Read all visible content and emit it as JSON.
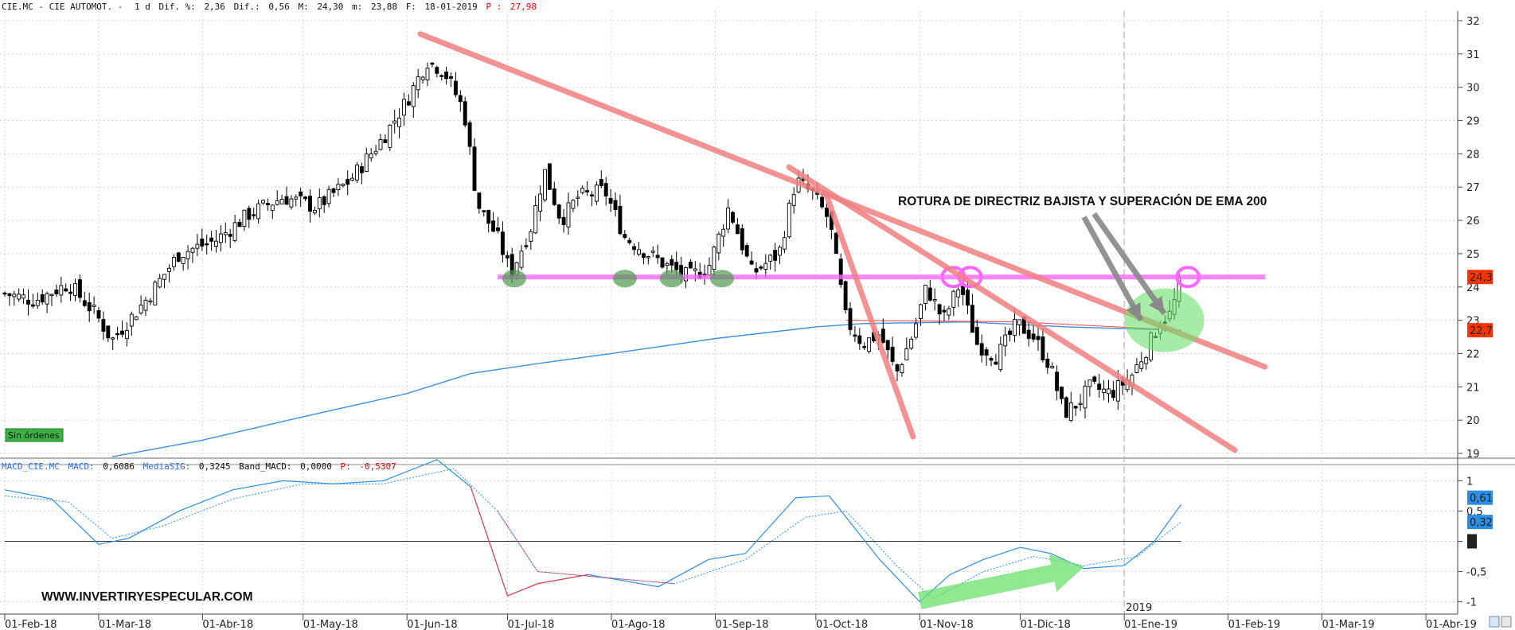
{
  "header": {
    "symbol": "CIE.MC - CIE AUTOMOT. -",
    "period": "1 d",
    "dif_pct_label": "Dif. %:",
    "dif_pct": "2,36",
    "dif_label": "Dif.:",
    "dif": "0,56",
    "max_label": "M:",
    "max": "24,30",
    "min_label": "m:",
    "min": "23,88",
    "date_label": "F:",
    "date": "18-01-2019",
    "p_label": "P :",
    "p": "27,98"
  },
  "macd_header": {
    "symbol": "MACD_CIE.MC",
    "macd_label": "MACD:",
    "macd": "0,6086",
    "signal_label": "MediaSIG:",
    "signal": "0,3245",
    "band_label": "Band_MACD:",
    "band": "0,0000",
    "p_label": "P:",
    "p": "-0,5307"
  },
  "status_badge": "Sin órdenes",
  "watermark": "WWW.INVERTIRYESPECULAR.COM",
  "annotation": "ROTURA DE DIRECTRIZ BAJISTA Y SUPERACIÓN DE EMA 200",
  "year_label": "2019",
  "colors": {
    "trendline": "#f08080",
    "support": "#ff66ff",
    "ema200": "#3d8fe0",
    "ema_short": "#ff4444",
    "macd": "#2a8ee8",
    "signal": "#ff3030",
    "highlight_green": "#6be06b",
    "price_tag": "#ff3300",
    "macd_tag": "#2a8ee8"
  },
  "chart_data": [
    {
      "type": "candlestick",
      "ylim": [
        19,
        32
      ],
      "y_ticks": [
        "19",
        "20",
        "21",
        "22",
        "23",
        "24",
        "25",
        "26",
        "27",
        "28",
        "29",
        "30",
        "31",
        "32"
      ],
      "x_ticks": [
        "01-Feb-18",
        "01-Mar-18",
        "01-Abr-18",
        "01-May-18",
        "01-Jun-18",
        "01-Jul-18",
        "01-Ago-18",
        "01-Sep-18",
        "01-Oct-18",
        "01-Nov-18",
        "01-Dic-18",
        "01-Ene-19",
        "01-Feb-19",
        "01-Mar-19",
        "01-Abr-19"
      ],
      "last_price_tag": "24,3",
      "ema_tag": "22,7",
      "support_level": 24.3,
      "close_path": [
        {
          "d": "2018-02-01",
          "v": 23.8
        },
        {
          "d": "2018-02-10",
          "v": 23.6
        },
        {
          "d": "2018-02-20",
          "v": 24.1
        },
        {
          "d": "2018-02-28",
          "v": 23.2
        },
        {
          "d": "2018-03-05",
          "v": 22.4
        },
        {
          "d": "2018-03-15",
          "v": 23.6
        },
        {
          "d": "2018-03-25",
          "v": 25.0
        },
        {
          "d": "2018-04-05",
          "v": 25.4
        },
        {
          "d": "2018-04-15",
          "v": 26.2
        },
        {
          "d": "2018-04-25",
          "v": 26.7
        },
        {
          "d": "2018-05-05",
          "v": 26.4
        },
        {
          "d": "2018-05-15",
          "v": 27.2
        },
        {
          "d": "2018-05-25",
          "v": 28.5
        },
        {
          "d": "2018-06-01",
          "v": 29.6
        },
        {
          "d": "2018-06-07",
          "v": 30.8
        },
        {
          "d": "2018-06-12",
          "v": 30.5
        },
        {
          "d": "2018-06-18",
          "v": 29.3
        },
        {
          "d": "2018-06-22",
          "v": 26.5
        },
        {
          "d": "2018-06-28",
          "v": 25.5
        },
        {
          "d": "2018-07-02",
          "v": 24.4
        },
        {
          "d": "2018-07-08",
          "v": 25.8
        },
        {
          "d": "2018-07-12",
          "v": 27.5
        },
        {
          "d": "2018-07-17",
          "v": 26.0
        },
        {
          "d": "2018-07-22",
          "v": 26.7
        },
        {
          "d": "2018-07-30",
          "v": 26.9
        },
        {
          "d": "2018-08-05",
          "v": 25.5
        },
        {
          "d": "2018-08-12",
          "v": 25.0
        },
        {
          "d": "2018-08-18",
          "v": 24.6
        },
        {
          "d": "2018-08-24",
          "v": 24.3
        },
        {
          "d": "2018-08-30",
          "v": 24.6
        },
        {
          "d": "2018-09-05",
          "v": 26.4
        },
        {
          "d": "2018-09-12",
          "v": 24.4
        },
        {
          "d": "2018-09-20",
          "v": 25.0
        },
        {
          "d": "2018-09-25",
          "v": 27.2
        },
        {
          "d": "2018-09-30",
          "v": 26.8
        },
        {
          "d": "2018-10-05",
          "v": 26.0
        },
        {
          "d": "2018-10-10",
          "v": 23.0
        },
        {
          "d": "2018-10-15",
          "v": 22.3
        },
        {
          "d": "2018-10-20",
          "v": 22.6
        },
        {
          "d": "2018-10-25",
          "v": 21.4
        },
        {
          "d": "2018-10-30",
          "v": 22.6
        },
        {
          "d": "2018-11-03",
          "v": 24.0
        },
        {
          "d": "2018-11-08",
          "v": 23.0
        },
        {
          "d": "2018-11-13",
          "v": 24.1
        },
        {
          "d": "2018-11-18",
          "v": 22.3
        },
        {
          "d": "2018-11-24",
          "v": 21.9
        },
        {
          "d": "2018-11-30",
          "v": 22.9
        },
        {
          "d": "2018-12-05",
          "v": 22.5
        },
        {
          "d": "2018-12-10",
          "v": 21.6
        },
        {
          "d": "2018-12-14",
          "v": 20.2
        },
        {
          "d": "2018-12-18",
          "v": 20.5
        },
        {
          "d": "2018-12-22",
          "v": 21.0
        },
        {
          "d": "2018-12-28",
          "v": 20.8
        },
        {
          "d": "2019-01-03",
          "v": 21.3
        },
        {
          "d": "2019-01-08",
          "v": 22.2
        },
        {
          "d": "2019-01-12",
          "v": 23.0
        },
        {
          "d": "2019-01-15",
          "v": 23.2
        },
        {
          "d": "2019-01-18",
          "v": 24.3
        }
      ],
      "ema200": [
        {
          "d": "2018-03-05",
          "v": 18.9
        },
        {
          "d": "2018-04-01",
          "v": 19.4
        },
        {
          "d": "2018-05-01",
          "v": 20.1
        },
        {
          "d": "2018-06-01",
          "v": 20.8
        },
        {
          "d": "2018-06-20",
          "v": 21.4
        },
        {
          "d": "2018-07-10",
          "v": 21.7
        },
        {
          "d": "2018-08-01",
          "v": 22.0
        },
        {
          "d": "2018-09-01",
          "v": 22.45
        },
        {
          "d": "2018-10-01",
          "v": 22.8
        },
        {
          "d": "2018-10-15",
          "v": 22.9
        },
        {
          "d": "2018-11-15",
          "v": 22.95
        },
        {
          "d": "2018-12-15",
          "v": 22.8
        },
        {
          "d": "2019-01-18",
          "v": 22.7
        }
      ],
      "trendlines": [
        {
          "from": {
            "d": "2018-06-05",
            "v": 31.6
          },
          "to": {
            "d": "2019-02-12",
            "v": 21.6
          }
        },
        {
          "from": {
            "d": "2018-09-23",
            "v": 27.6
          },
          "to": {
            "d": "2019-02-03",
            "v": 19.1
          }
        },
        {
          "from": {
            "d": "2018-10-04",
            "v": 26.8
          },
          "to": {
            "d": "2018-10-30",
            "v": 19.5
          }
        }
      ]
    },
    {
      "type": "line",
      "ylim": [
        -1.15,
        1.15
      ],
      "y_ticks": [
        "-1",
        "-0,5",
        "0",
        "0,5",
        "1"
      ],
      "value_tags": [
        "0,61",
        "0,32",
        "0"
      ],
      "series": [
        {
          "name": "MACD",
          "points": [
            {
              "d": "2018-02-01",
              "v": 0.85
            },
            {
              "d": "2018-02-15",
              "v": 0.7
            },
            {
              "d": "2018-03-01",
              "v": -0.05
            },
            {
              "d": "2018-03-10",
              "v": 0.05
            },
            {
              "d": "2018-03-25",
              "v": 0.5
            },
            {
              "d": "2018-04-10",
              "v": 0.85
            },
            {
              "d": "2018-04-25",
              "v": 1.0
            },
            {
              "d": "2018-05-10",
              "v": 0.95
            },
            {
              "d": "2018-05-25",
              "v": 1.0
            },
            {
              "d": "2018-06-10",
              "v": 1.35
            },
            {
              "d": "2018-06-20",
              "v": 0.9
            },
            {
              "d": "2018-07-01",
              "v": -0.9
            },
            {
              "d": "2018-07-10",
              "v": -0.7
            },
            {
              "d": "2018-07-25",
              "v": -0.55
            },
            {
              "d": "2018-08-15",
              "v": -0.75
            },
            {
              "d": "2018-08-30",
              "v": -0.3
            },
            {
              "d": "2018-09-10",
              "v": -0.2
            },
            {
              "d": "2018-09-25",
              "v": 0.72
            },
            {
              "d": "2018-10-05",
              "v": 0.75
            },
            {
              "d": "2018-10-20",
              "v": -0.3
            },
            {
              "d": "2018-11-01",
              "v": -1.0
            },
            {
              "d": "2018-11-10",
              "v": -0.55
            },
            {
              "d": "2018-11-20",
              "v": -0.3
            },
            {
              "d": "2018-12-01",
              "v": -0.1
            },
            {
              "d": "2018-12-10",
              "v": -0.2
            },
            {
              "d": "2018-12-20",
              "v": -0.45
            },
            {
              "d": "2019-01-01",
              "v": -0.4
            },
            {
              "d": "2019-01-10",
              "v": 0.0
            },
            {
              "d": "2019-01-18",
              "v": 0.61
            }
          ]
        },
        {
          "name": "MediaSIG",
          "points": [
            {
              "d": "2018-02-01",
              "v": 0.75
            },
            {
              "d": "2018-02-20",
              "v": 0.65
            },
            {
              "d": "2018-03-05",
              "v": 0.05
            },
            {
              "d": "2018-03-20",
              "v": 0.25
            },
            {
              "d": "2018-04-10",
              "v": 0.7
            },
            {
              "d": "2018-05-01",
              "v": 0.95
            },
            {
              "d": "2018-05-25",
              "v": 0.95
            },
            {
              "d": "2018-06-15",
              "v": 1.2
            },
            {
              "d": "2018-06-28",
              "v": 0.5
            },
            {
              "d": "2018-07-10",
              "v": -0.5
            },
            {
              "d": "2018-07-30",
              "v": -0.6
            },
            {
              "d": "2018-08-20",
              "v": -0.7
            },
            {
              "d": "2018-09-10",
              "v": -0.3
            },
            {
              "d": "2018-09-28",
              "v": 0.4
            },
            {
              "d": "2018-10-10",
              "v": 0.5
            },
            {
              "d": "2018-10-25",
              "v": -0.4
            },
            {
              "d": "2018-11-05",
              "v": -0.95
            },
            {
              "d": "2018-11-20",
              "v": -0.5
            },
            {
              "d": "2018-12-05",
              "v": -0.25
            },
            {
              "d": "2018-12-20",
              "v": -0.4
            },
            {
              "d": "2019-01-05",
              "v": -0.25
            },
            {
              "d": "2019-01-18",
              "v": 0.32
            }
          ]
        }
      ]
    }
  ]
}
